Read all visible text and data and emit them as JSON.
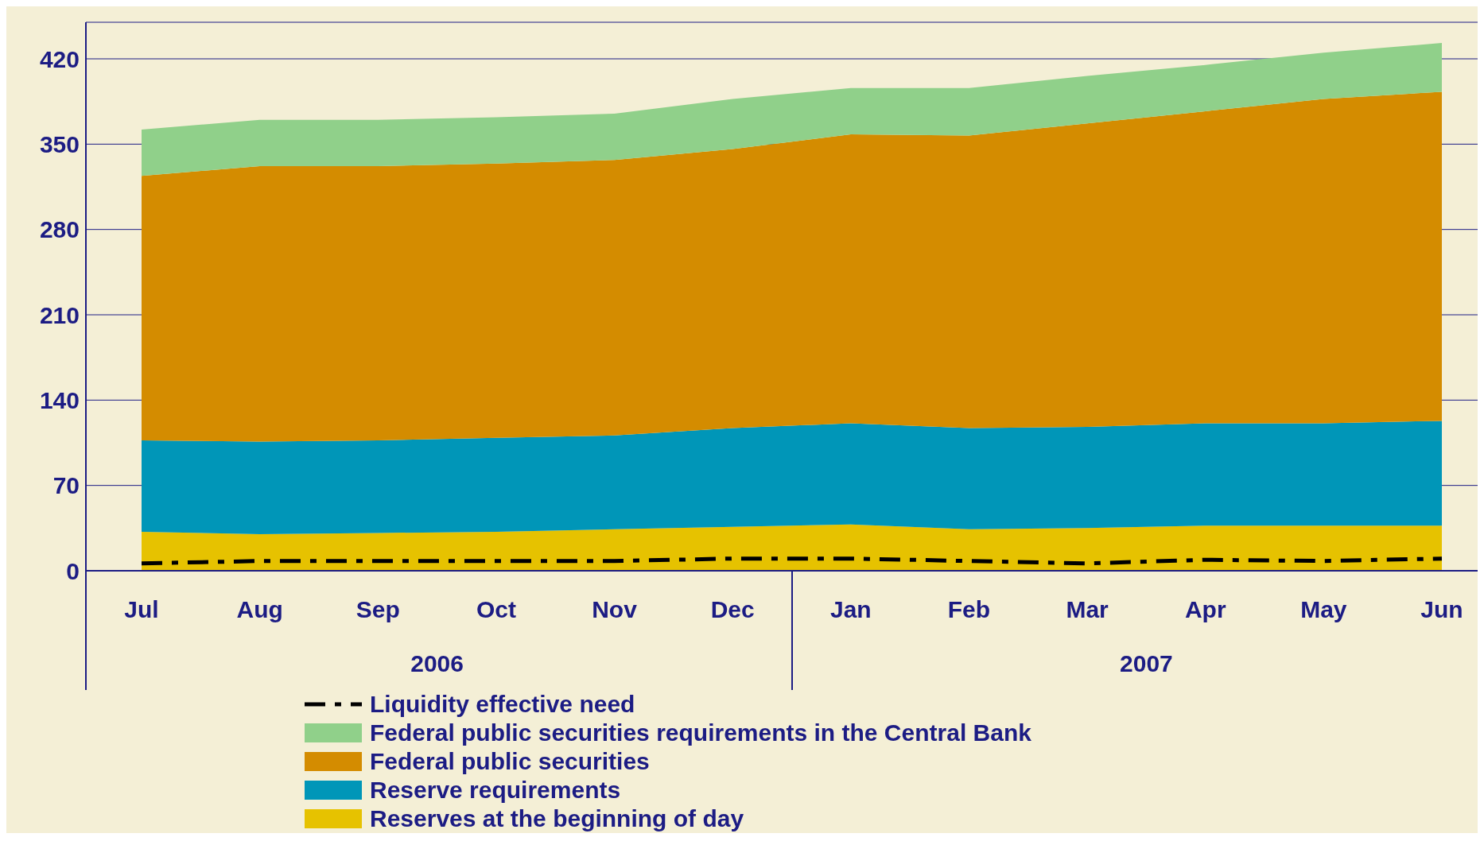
{
  "chart_data": {
    "type": "area",
    "stacked": true,
    "categories": [
      "Jul",
      "Aug",
      "Sep",
      "Oct",
      "Nov",
      "Dec",
      "Jan",
      "Feb",
      "Mar",
      "Apr",
      "May",
      "Jun"
    ],
    "series": [
      {
        "name": "Reserves at the beginning of day",
        "color": "#e6c200",
        "values": [
          32,
          30,
          31,
          32,
          34,
          36,
          38,
          34,
          35,
          37,
          37,
          37
        ]
      },
      {
        "name": "Reserve requirements",
        "color": "#0096b8",
        "values": [
          75,
          76,
          76,
          77,
          77,
          81,
          83,
          83,
          83,
          84,
          84,
          86
        ]
      },
      {
        "name": "Federal public securities",
        "color": "#d48c00",
        "values": [
          217,
          226,
          225,
          225,
          226,
          229,
          237,
          240,
          249,
          256,
          266,
          270
        ]
      },
      {
        "name": "Federal public securities requirements in the Central Bank",
        "color": "#90d08a",
        "values": [
          38,
          38,
          38,
          38,
          38,
          41,
          38,
          39,
          39,
          38,
          38,
          40
        ]
      },
      {
        "name": "Liquidity effective need",
        "type": "line",
        "color": "#000000",
        "line_style": "dashed",
        "values": [
          6,
          8,
          8,
          8,
          8,
          10,
          10,
          8,
          6,
          9,
          8,
          10
        ]
      }
    ],
    "annotations": [
      "2006",
      "2007"
    ],
    "ylim": [
      0,
      450
    ],
    "yticks": [
      0,
      70,
      140,
      210,
      280,
      350,
      420
    ],
    "grid": "y",
    "legend": "bottom"
  }
}
